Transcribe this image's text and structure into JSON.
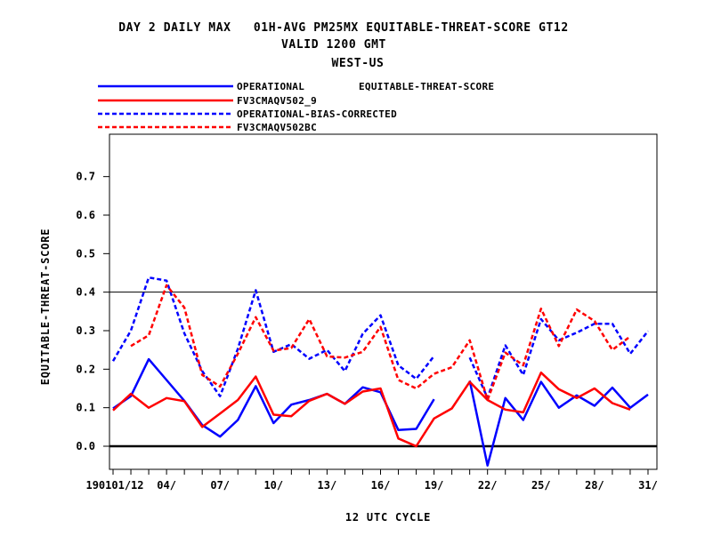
{
  "chart_data": {
    "type": "line",
    "title_lines": [
      "DAY 2 DAILY MAX   01H-AVG PM25MX EQUITABLE-THREAT-SCORE GT12",
      "VALID 1200 GMT",
      "WEST-US"
    ],
    "legend_caption": "EQUITABLE-THREAT-SCORE",
    "xlabel": "12 UTC CYCLE",
    "ylabel": "EQUITABLE-THREAT-SCORE",
    "ylim": [
      -0.06,
      0.81
    ],
    "xlim": [
      0.8,
      31.5
    ],
    "reference_lines": [
      0.0,
      0.4
    ],
    "x_ticks": [
      {
        "x": 1,
        "label": "190101/12"
      },
      {
        "x": 4,
        "label": "04/"
      },
      {
        "x": 7,
        "label": "07/"
      },
      {
        "x": 10,
        "label": "10/"
      },
      {
        "x": 13,
        "label": "13/"
      },
      {
        "x": 16,
        "label": "16/"
      },
      {
        "x": 19,
        "label": "19/"
      },
      {
        "x": 22,
        "label": "22/"
      },
      {
        "x": 25,
        "label": "25/"
      },
      {
        "x": 28,
        "label": "28/"
      },
      {
        "x": 31,
        "label": "31/"
      }
    ],
    "y_ticks": [
      {
        "v": 0.0,
        "label": "0.0"
      },
      {
        "v": 0.1,
        "label": "0.1"
      },
      {
        "v": 0.2,
        "label": "0.2"
      },
      {
        "v": 0.3,
        "label": "0.3"
      },
      {
        "v": 0.4,
        "label": "0.4"
      },
      {
        "v": 0.5,
        "label": "0.5"
      },
      {
        "v": 0.6,
        "label": "0.6"
      },
      {
        "v": 0.7,
        "label": "0.7"
      }
    ],
    "series": [
      {
        "name": "OPERATIONAL",
        "color": "#0000ff",
        "dash": "solid",
        "x": [
          1,
          2,
          3,
          4,
          5,
          6,
          7,
          8,
          9,
          10,
          11,
          12,
          13,
          14,
          15,
          16,
          17,
          18,
          19,
          20,
          21,
          22,
          23,
          24,
          25,
          26,
          27,
          28,
          29,
          30,
          31
        ],
        "values": [
          0.098,
          0.13,
          0.226,
          0.172,
          0.118,
          0.055,
          0.025,
          0.068,
          0.156,
          0.06,
          0.108,
          0.12,
          0.136,
          0.11,
          0.153,
          0.14,
          0.042,
          0.045,
          0.122,
          null,
          0.17,
          -0.05,
          0.125,
          0.068,
          0.167,
          0.1,
          0.132,
          0.105,
          0.152,
          0.1,
          0.134
        ]
      },
      {
        "name": "FV3CMAQV502_9",
        "color": "#ff0000",
        "dash": "solid",
        "x": [
          1,
          2,
          3,
          4,
          5,
          6,
          7,
          8,
          9,
          10,
          11,
          12,
          13,
          14,
          15,
          16,
          17,
          18,
          19,
          20,
          21,
          22,
          23,
          24,
          25,
          26,
          27,
          28,
          29,
          30
        ],
        "values": [
          0.093,
          0.136,
          0.1,
          0.125,
          0.117,
          0.05,
          0.085,
          0.12,
          0.181,
          0.082,
          0.078,
          0.118,
          0.136,
          0.11,
          0.142,
          0.15,
          0.02,
          0.0,
          0.072,
          0.098,
          0.167,
          0.12,
          0.095,
          0.088,
          0.191,
          0.148,
          0.125,
          0.15,
          0.112,
          0.095
        ]
      },
      {
        "name": "OPERATIONAL-BIAS-CORRECTED",
        "color": "#0000ff",
        "dash": "dashed",
        "x": [
          1,
          2,
          3,
          4,
          5,
          6,
          7,
          8,
          9,
          10,
          11,
          12,
          13,
          14,
          15,
          16,
          17,
          18,
          19,
          20,
          21,
          22,
          23,
          24,
          25,
          26,
          27,
          28,
          29,
          30,
          31
        ],
        "values": [
          0.221,
          0.3,
          0.438,
          0.43,
          0.293,
          0.195,
          0.13,
          0.253,
          0.405,
          0.245,
          0.265,
          0.227,
          0.25,
          0.195,
          0.292,
          0.34,
          0.21,
          0.175,
          0.234,
          null,
          0.23,
          0.125,
          0.262,
          0.185,
          0.33,
          0.275,
          0.295,
          0.318,
          0.318,
          0.24,
          0.299
        ]
      },
      {
        "name": "FV3CMAQV502BC",
        "color": "#ff0000",
        "dash": "dashed",
        "x": [
          2,
          3,
          4,
          5,
          6,
          7,
          8,
          9,
          10,
          11,
          12,
          13,
          14,
          15,
          16,
          17,
          18,
          19,
          20,
          21,
          22,
          23,
          24,
          25,
          26,
          27,
          28,
          29,
          30
        ],
        "values": [
          0.26,
          0.288,
          0.418,
          0.36,
          0.185,
          0.155,
          0.24,
          0.335,
          0.248,
          0.255,
          0.33,
          0.233,
          0.23,
          0.245,
          0.31,
          0.172,
          0.15,
          0.188,
          0.205,
          0.275,
          0.12,
          0.243,
          0.21,
          0.357,
          0.26,
          0.355,
          0.325,
          0.25,
          0.285
        ]
      }
    ]
  }
}
